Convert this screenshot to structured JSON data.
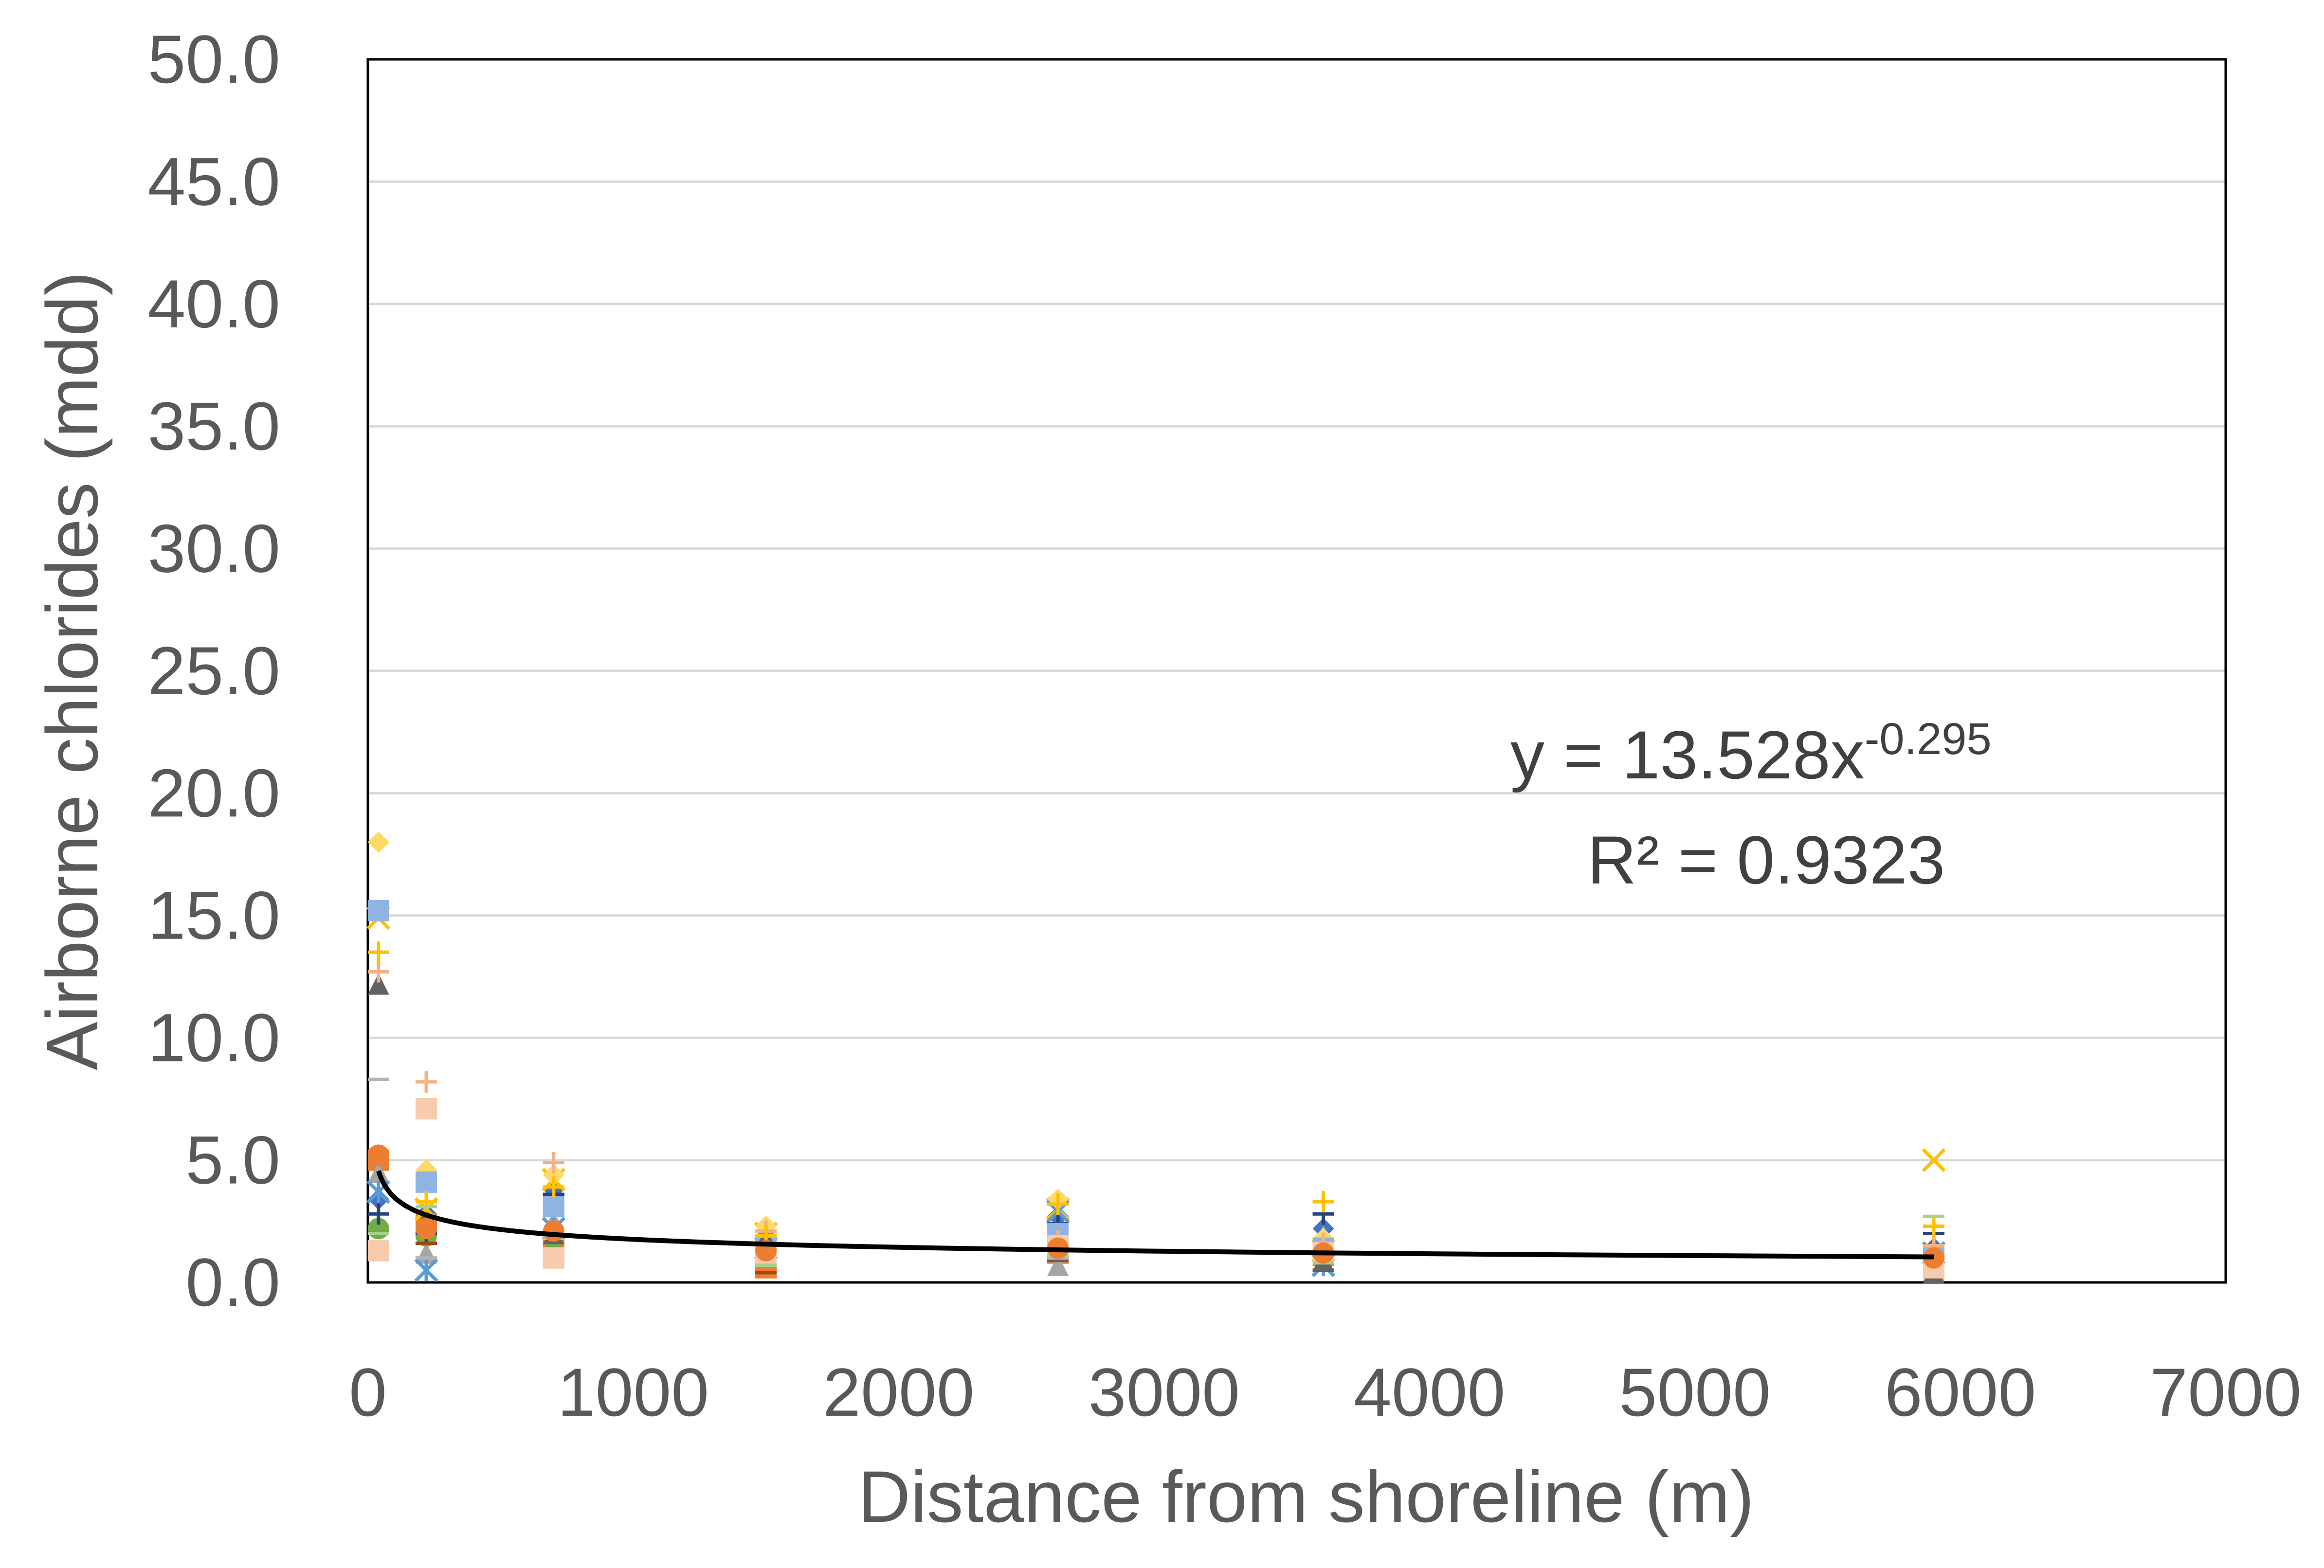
{
  "chart_data": {
    "type": "scatter",
    "title": "",
    "xlabel": "Distance from shoreline (m)",
    "ylabel": "Airborne chlorides (mdd)",
    "xlim": [
      0,
      7000
    ],
    "ylim": [
      0,
      50
    ],
    "xticks": [
      0,
      1000,
      2000,
      3000,
      4000,
      5000,
      6000,
      7000
    ],
    "yticks": [
      0,
      5,
      10,
      15,
      20,
      25,
      30,
      35,
      40,
      45,
      50
    ],
    "xtick_labels": [
      "0",
      "1000",
      "2000",
      "3000",
      "4000",
      "5000",
      "6000",
      "7000"
    ],
    "ytick_labels": [
      "0.0",
      "5.0",
      "10.0",
      "15.0",
      "20.0",
      "25.0",
      "30.0",
      "35.0",
      "40.0",
      "45.0",
      "50.0"
    ],
    "grid": {
      "horizontal": true,
      "vertical": false
    },
    "legend": "none",
    "series": [
      {
        "marker": "diamond",
        "color": "#4472c4",
        "points": [
          [
            40,
            3.4
          ],
          [
            220,
            2.8
          ],
          [
            700,
            3.8
          ],
          [
            1500,
            1.0
          ],
          [
            2600,
            2.7
          ],
          [
            3600,
            2.2
          ],
          [
            5900,
            1.4
          ]
        ]
      },
      {
        "marker": "square",
        "color": "#ed7d31",
        "points": [
          [
            40,
            5.0
          ],
          [
            220,
            2.4
          ],
          [
            700,
            1.5
          ],
          [
            1500,
            0.6
          ],
          [
            2600,
            1.2
          ],
          [
            3600,
            1.1
          ],
          [
            5900,
            0.8
          ]
        ]
      },
      {
        "marker": "triangle",
        "color": "#a5a5a5",
        "points": [
          [
            40,
            4.5
          ],
          [
            220,
            1.2
          ],
          [
            700,
            2.5
          ],
          [
            1500,
            2.2
          ],
          [
            2600,
            0.7
          ],
          [
            3600,
            1.9
          ],
          [
            5900,
            0.5
          ]
        ]
      },
      {
        "marker": "x",
        "color": "#ffc000",
        "points": [
          [
            40,
            14.9
          ],
          [
            220,
            3.0
          ],
          [
            700,
            4.2
          ],
          [
            1500,
            2.0
          ],
          [
            2600,
            3.0
          ],
          [
            3600,
            1.3
          ],
          [
            5900,
            5.0
          ]
        ]
      },
      {
        "marker": "asterisk",
        "color": "#5b9bd5",
        "points": [
          [
            40,
            3.7
          ],
          [
            220,
            0.5
          ],
          [
            700,
            2.2
          ],
          [
            1500,
            1.4
          ],
          [
            2600,
            2.9
          ],
          [
            3600,
            0.7
          ],
          [
            5900,
            1.2
          ]
        ]
      },
      {
        "marker": "circle",
        "color": "#70ad47",
        "points": [
          [
            40,
            2.2
          ],
          [
            220,
            1.9
          ],
          [
            700,
            1.2
          ],
          [
            1500,
            1.7
          ],
          [
            2600,
            1.9
          ],
          [
            3600,
            1.5
          ],
          [
            5900,
            0.6
          ]
        ]
      },
      {
        "marker": "plus",
        "color": "#264478",
        "points": [
          [
            40,
            2.8
          ],
          [
            220,
            2.0
          ],
          [
            700,
            3.6
          ],
          [
            1500,
            1.1
          ],
          [
            2600,
            2.4
          ],
          [
            3600,
            2.8
          ],
          [
            5900,
            2.0
          ]
        ]
      },
      {
        "marker": "dash",
        "color": "#9e480e",
        "points": [
          [
            40,
            1.0
          ],
          [
            220,
            1.6
          ],
          [
            700,
            0.9
          ],
          [
            1500,
            0.4
          ],
          [
            2600,
            0.9
          ],
          [
            3600,
            0.5
          ],
          [
            5900,
            0.3
          ]
        ]
      },
      {
        "marker": "diamond",
        "color": "#ffd966",
        "points": [
          [
            40,
            18.0
          ],
          [
            220,
            4.6
          ],
          [
            700,
            4.4
          ],
          [
            1500,
            2.3
          ],
          [
            2600,
            3.4
          ],
          [
            3600,
            1.8
          ],
          [
            5900,
            1.2
          ]
        ]
      },
      {
        "marker": "square",
        "color": "#8fb4e3",
        "points": [
          [
            40,
            15.2
          ],
          [
            220,
            4.1
          ],
          [
            700,
            3.1
          ],
          [
            1500,
            1.5
          ],
          [
            2600,
            2.0
          ],
          [
            3600,
            1.4
          ],
          [
            5900,
            1.0
          ]
        ]
      },
      {
        "marker": "triangle",
        "color": "#636363",
        "points": [
          [
            40,
            12.2
          ],
          [
            220,
            2.6
          ],
          [
            700,
            2.0
          ],
          [
            1500,
            1.8
          ],
          [
            2600,
            1.3
          ],
          [
            3600,
            0.9
          ],
          [
            5900,
            0.4
          ]
        ]
      },
      {
        "marker": "plus",
        "color": "#f4b183",
        "points": [
          [
            40,
            12.7
          ],
          [
            220,
            8.2
          ],
          [
            700,
            4.9
          ],
          [
            1500,
            2.1
          ],
          [
            2600,
            1.7
          ],
          [
            3600,
            1.6
          ],
          [
            5900,
            1.5
          ]
        ]
      },
      {
        "marker": "plus",
        "color": "#ffc000",
        "points": [
          [
            40,
            13.5
          ],
          [
            220,
            3.3
          ],
          [
            700,
            3.9
          ],
          [
            1500,
            1.9
          ],
          [
            2600,
            3.2
          ],
          [
            3600,
            3.3
          ],
          [
            5900,
            2.3
          ]
        ]
      },
      {
        "marker": "dash",
        "color": "#b4b4b4",
        "points": [
          [
            40,
            8.3
          ],
          [
            220,
            1.0
          ],
          [
            700,
            0.8
          ],
          [
            1500,
            0.8
          ],
          [
            2600,
            1.0
          ],
          [
            3600,
            0.9
          ],
          [
            5900,
            0.9
          ]
        ]
      },
      {
        "marker": "square",
        "color": "#f8cbad",
        "points": [
          [
            40,
            1.3
          ],
          [
            220,
            7.1
          ],
          [
            700,
            1.0
          ],
          [
            1500,
            1.2
          ],
          [
            2600,
            1.5
          ],
          [
            3600,
            1.2
          ],
          [
            5900,
            0.6
          ]
        ]
      },
      {
        "marker": "dash",
        "color": "#a9d18e",
        "points": [
          [
            40,
            2.0
          ],
          [
            220,
            3.1
          ],
          [
            700,
            1.8
          ],
          [
            1500,
            0.7
          ],
          [
            2600,
            1.1
          ],
          [
            3600,
            0.8
          ],
          [
            5900,
            2.7
          ]
        ]
      },
      {
        "marker": "circle",
        "color": "#ed7d31",
        "points": [
          [
            40,
            5.2
          ],
          [
            220,
            2.2
          ],
          [
            700,
            2.1
          ],
          [
            1500,
            1.3
          ],
          [
            2600,
            1.4
          ],
          [
            3600,
            1.2
          ],
          [
            5900,
            1.0
          ]
        ]
      }
    ],
    "trendline": {
      "type": "power",
      "a": 13.528,
      "b": -0.295,
      "x_range": [
        40,
        5900
      ],
      "equation_prefix": "y = 13.528x",
      "equation_exponent": "-0.295",
      "r_squared_label": "R² = 0.9323"
    }
  }
}
